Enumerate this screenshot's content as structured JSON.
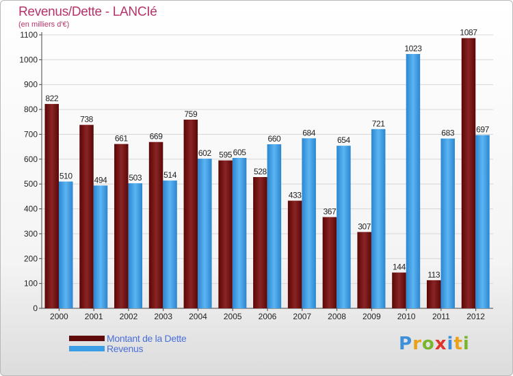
{
  "chart_data": {
    "type": "bar",
    "title": "Revenus/Dette - LANCIé",
    "subtitle": "(en milliers d'€)",
    "categories": [
      "2000",
      "2001",
      "2002",
      "2003",
      "2004",
      "2005",
      "2006",
      "2007",
      "2008",
      "2009",
      "2010",
      "2011",
      "2012"
    ],
    "series": [
      {
        "name": "Montant de la Dette",
        "color": "#7a1414",
        "values": [
          822,
          738,
          661,
          669,
          759,
          595,
          528,
          433,
          367,
          307,
          144,
          113,
          1087
        ]
      },
      {
        "name": "Revenus",
        "color": "#3a9de6",
        "values": [
          510,
          494,
          503,
          514,
          602,
          605,
          660,
          684,
          654,
          721,
          1023,
          683,
          697
        ]
      }
    ],
    "ylim": [
      0,
      1100
    ],
    "yticks": [
      0,
      100,
      200,
      300,
      400,
      500,
      600,
      700,
      800,
      900,
      1000,
      1100
    ],
    "grid": true,
    "legend_position": "bottom-left"
  },
  "logo": {
    "letters": [
      {
        "ch": "P",
        "color": "#3c8fd8"
      },
      {
        "ch": "r",
        "color": "#e8a21a"
      },
      {
        "ch": "o",
        "color": "#79b52e"
      },
      {
        "ch": "x",
        "color": "#e0332b"
      },
      {
        "ch": "i",
        "color": "#3c8fd8"
      },
      {
        "ch": "t",
        "color": "#e8a21a"
      },
      {
        "ch": "i",
        "color": "#79b52e"
      }
    ]
  }
}
